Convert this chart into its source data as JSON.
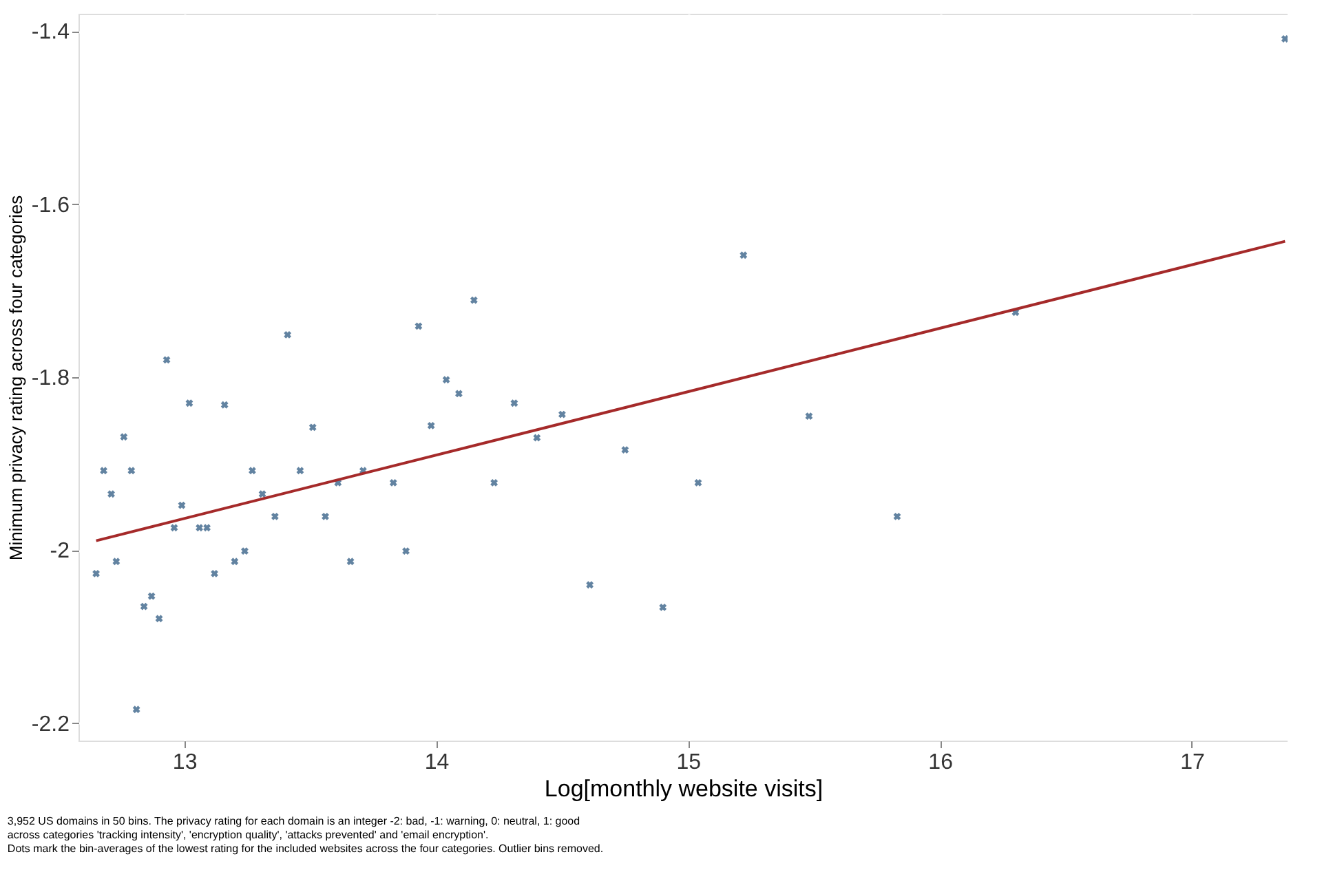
{
  "chart_data": {
    "type": "scatter",
    "xlabel": "Log[monthly website visits]",
    "ylabel": "Minimum privacy rating across four categories",
    "xlim": [
      12.58,
      17.38
    ],
    "ylim": [
      -2.22,
      -1.38
    ],
    "xticks": [
      13,
      14,
      15,
      16,
      17
    ],
    "yticks": [
      -2.2,
      -2,
      -1.8,
      -1.6,
      -1.4
    ],
    "grid": true,
    "series": [
      {
        "marker": "cross",
        "color": "#1f4e79",
        "x": [
          12.65,
          12.68,
          12.71,
          12.73,
          12.76,
          12.79,
          12.81,
          12.84,
          12.87,
          12.9,
          12.93,
          12.96,
          12.99,
          13.02,
          13.06,
          13.09,
          13.12,
          13.16,
          13.2,
          13.24,
          13.27,
          13.31,
          13.36,
          13.41,
          13.46,
          13.51,
          13.56,
          13.61,
          13.66,
          13.71,
          13.83,
          13.88,
          13.93,
          13.98,
          14.04,
          14.09,
          14.15,
          14.23,
          14.31,
          14.4,
          14.5,
          14.61,
          14.75,
          14.9,
          15.04,
          15.22,
          15.48,
          15.83,
          16.3,
          17.37
        ],
        "values": [
          -2.027,
          -1.908,
          -1.935,
          -2.013,
          -1.869,
          -1.908,
          -2.184,
          -2.065,
          -2.053,
          -2.079,
          -1.78,
          -1.974,
          -1.948,
          -1.83,
          -1.974,
          -1.974,
          -2.027,
          -1.832,
          -2.013,
          -2.001,
          -1.908,
          -1.935,
          -1.961,
          -1.751,
          -1.908,
          -1.858,
          -1.961,
          -1.922,
          -2.013,
          -1.908,
          -1.922,
          -2.001,
          -1.741,
          -1.856,
          -1.803,
          -1.819,
          -1.711,
          -1.922,
          -1.83,
          -1.87,
          -1.843,
          -2.04,
          -1.884,
          -2.066,
          -1.922,
          -1.659,
          -1.845,
          -1.961,
          -1.725,
          -1.409
        ]
      },
      {
        "type": "line",
        "color": "#a52a2a",
        "x": [
          12.65,
          17.37
        ],
        "values": [
          -1.989,
          -1.643
        ]
      }
    ],
    "annotations": [
      "3,952 US domains in 50 bins. The privacy rating for each domain is an integer -2: bad, -1: warning, 0: neutral, 1: good",
      "across categories 'tracking intensity', 'encryption quality', 'attacks prevented' and 'email encryption'.",
      "Dots mark the bin-averages of the lowest rating for the included websites across the four categories. Outlier bins removed."
    ]
  }
}
